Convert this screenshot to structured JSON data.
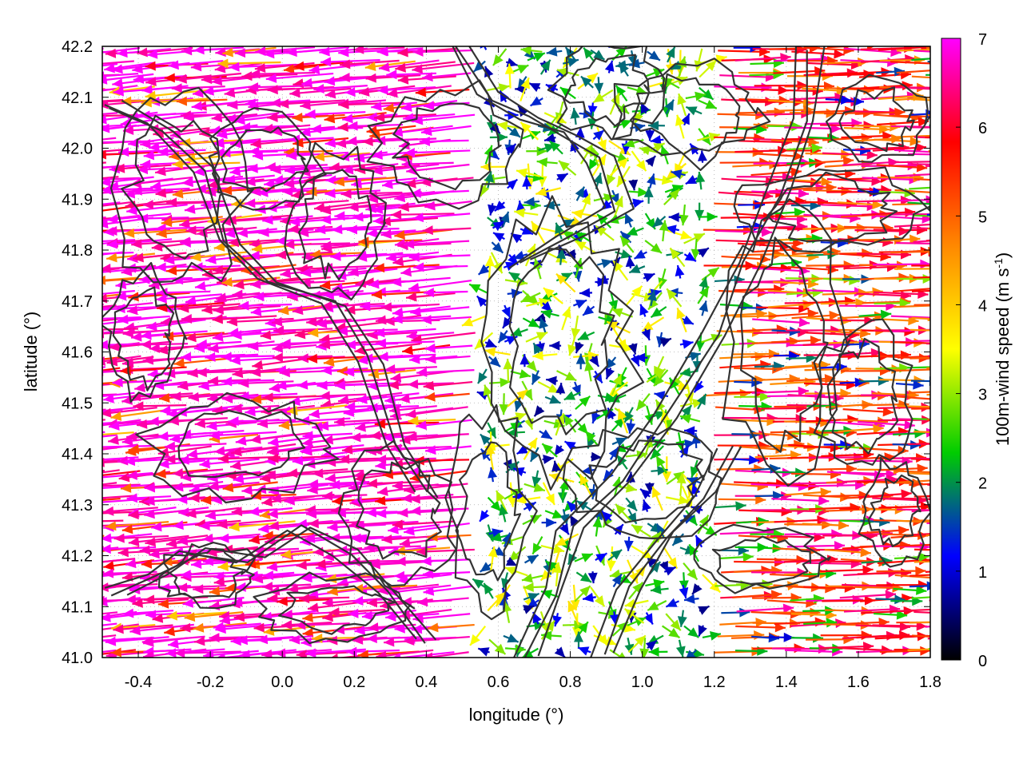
{
  "chart_data": {
    "type": "vector-field",
    "title": "",
    "xlabel": "longitude (°)",
    "ylabel": "latitude (°)",
    "xlim": [
      -0.5,
      1.8
    ],
    "ylim": [
      41.0,
      42.2
    ],
    "xticks": [
      -0.4,
      -0.2,
      0.0,
      0.2,
      0.4,
      0.6,
      0.8,
      1.0,
      1.2,
      1.4,
      1.6,
      1.8
    ],
    "xtick_labels": [
      "-0.4",
      "-0.2",
      "0.0",
      "0.2",
      "0.4",
      "0.6",
      "0.8",
      "1.0",
      "1.2",
      "1.4",
      "1.6",
      "1.8"
    ],
    "yticks": [
      41.0,
      41.1,
      41.2,
      41.3,
      41.4,
      41.5,
      41.6,
      41.7,
      41.8,
      41.9,
      42.0,
      42.1,
      42.2
    ],
    "ytick_labels": [
      "41.0",
      "41.1",
      "41.2",
      "41.3",
      "41.4",
      "41.5",
      "41.6",
      "41.7",
      "41.8",
      "41.9",
      "42.0",
      "42.1",
      "42.2"
    ],
    "grid": true,
    "colorbar": {
      "label_main": "100m-wind speed (m s",
      "label_sup": "-1",
      "label_close": ")",
      "range": [
        0,
        7
      ],
      "ticks": [
        0,
        1,
        2,
        3,
        4,
        5,
        6,
        7
      ],
      "tick_labels": [
        "0",
        "1",
        "2",
        "3",
        "4",
        "5",
        "6",
        "7"
      ],
      "palette": [
        "#000000",
        "#0000ff",
        "#00cc00",
        "#ffff00",
        "#ff8800",
        "#ff0000",
        "#ff00ff"
      ]
    },
    "contour_color": "#333333",
    "wind_field_summary": [
      {
        "region": "west (lon -0.5 to 0.6)",
        "direction": "toward west (easterly flow)",
        "speed": 7
      },
      {
        "region": "central valley (lon 0.6 to 1.1)",
        "direction": "variable / weak",
        "speed": 2
      },
      {
        "region": "east (lon 1.1 to 1.8)",
        "direction": "toward east (westerly flow)",
        "speed": 5.5
      }
    ]
  }
}
